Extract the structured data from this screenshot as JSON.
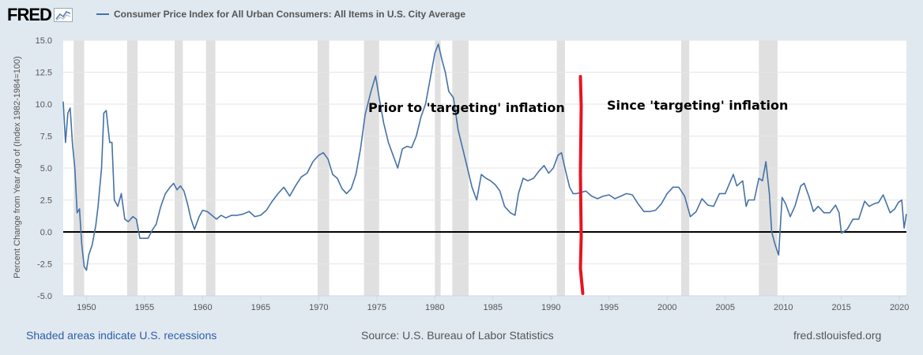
{
  "header": {
    "logo_text": "FRED",
    "logo_icon": "line-chart-icon",
    "series_name": "Consumer Price Index for All Urban Consumers: All Items in U.S. City Average",
    "series_color": "#4572a7"
  },
  "footer": {
    "recessions_note": "Shaded areas indicate U.S. recessions",
    "source": "Source: U.S. Bureau of Labor Statistics",
    "site": "fred.stlouisfed.org"
  },
  "chart_data": {
    "type": "line",
    "title": "",
    "xlabel": "",
    "ylabel": "Percent Change from Year Ago of (Index 1982-1984=100)",
    "xlim": [
      1948.0,
      2020.6
    ],
    "ylim": [
      -5.0,
      15.0
    ],
    "x_ticks": [
      "1950",
      "1955",
      "1960",
      "1965",
      "1970",
      "1975",
      "1980",
      "1985",
      "1990",
      "1995",
      "2000",
      "2005",
      "2010",
      "2015",
      "2020"
    ],
    "y_ticks": [
      "15.0",
      "12.5",
      "10.0",
      "7.5",
      "5.0",
      "2.5",
      "0.0",
      "-2.5",
      "-5.0"
    ],
    "grid": "horizontal",
    "zero_line": true,
    "recessions": [
      [
        1948.9,
        1949.8
      ],
      [
        1953.5,
        1954.4
      ],
      [
        1957.6,
        1958.3
      ],
      [
        1960.3,
        1961.1
      ],
      [
        1969.9,
        1970.9
      ],
      [
        1973.9,
        1975.2
      ],
      [
        1980.0,
        1980.5
      ],
      [
        1981.5,
        1982.9
      ],
      [
        1990.5,
        1991.2
      ],
      [
        2001.2,
        2001.9
      ],
      [
        2007.9,
        2009.5
      ]
    ],
    "series": [
      {
        "color": "#4572a7",
        "points": [
          [
            1948.0,
            10.2
          ],
          [
            1948.2,
            7.0
          ],
          [
            1948.4,
            9.3
          ],
          [
            1948.6,
            9.7
          ],
          [
            1948.8,
            6.8
          ],
          [
            1949.0,
            5.0
          ],
          [
            1949.2,
            1.5
          ],
          [
            1949.4,
            1.8
          ],
          [
            1949.6,
            -1.0
          ],
          [
            1949.8,
            -2.7
          ],
          [
            1950.0,
            -3.0
          ],
          [
            1950.2,
            -1.8
          ],
          [
            1950.5,
            -1.0
          ],
          [
            1950.8,
            0.5
          ],
          [
            1951.0,
            2.0
          ],
          [
            1951.3,
            5.0
          ],
          [
            1951.5,
            9.3
          ],
          [
            1951.7,
            9.5
          ],
          [
            1952.0,
            7.0
          ],
          [
            1952.2,
            7.0
          ],
          [
            1952.4,
            2.5
          ],
          [
            1952.7,
            2.0
          ],
          [
            1953.0,
            3.0
          ],
          [
            1953.3,
            1.0
          ],
          [
            1953.6,
            0.8
          ],
          [
            1954.0,
            1.2
          ],
          [
            1954.3,
            1.0
          ],
          [
            1954.6,
            -0.5
          ],
          [
            1955.0,
            -0.5
          ],
          [
            1955.3,
            -0.5
          ],
          [
            1955.7,
            0.2
          ],
          [
            1956.0,
            0.6
          ],
          [
            1956.4,
            2.0
          ],
          [
            1956.8,
            3.0
          ],
          [
            1957.2,
            3.5
          ],
          [
            1957.5,
            3.8
          ],
          [
            1957.8,
            3.3
          ],
          [
            1958.1,
            3.6
          ],
          [
            1958.4,
            3.2
          ],
          [
            1958.7,
            2.2
          ],
          [
            1959.0,
            1.0
          ],
          [
            1959.3,
            0.2
          ],
          [
            1959.7,
            1.2
          ],
          [
            1960.0,
            1.7
          ],
          [
            1960.4,
            1.6
          ],
          [
            1960.8,
            1.3
          ],
          [
            1961.2,
            1.0
          ],
          [
            1961.6,
            1.3
          ],
          [
            1962.0,
            1.1
          ],
          [
            1962.5,
            1.3
          ],
          [
            1963.0,
            1.3
          ],
          [
            1963.5,
            1.4
          ],
          [
            1964.0,
            1.6
          ],
          [
            1964.5,
            1.2
          ],
          [
            1965.0,
            1.3
          ],
          [
            1965.5,
            1.7
          ],
          [
            1966.0,
            2.4
          ],
          [
            1966.5,
            3.0
          ],
          [
            1967.0,
            3.5
          ],
          [
            1967.5,
            2.8
          ],
          [
            1968.0,
            3.6
          ],
          [
            1968.5,
            4.3
          ],
          [
            1969.0,
            4.6
          ],
          [
            1969.5,
            5.5
          ],
          [
            1970.0,
            6.0
          ],
          [
            1970.4,
            6.2
          ],
          [
            1970.8,
            5.7
          ],
          [
            1971.2,
            4.5
          ],
          [
            1971.6,
            4.2
          ],
          [
            1972.0,
            3.4
          ],
          [
            1972.4,
            3.0
          ],
          [
            1972.8,
            3.4
          ],
          [
            1973.2,
            4.5
          ],
          [
            1973.6,
            6.5
          ],
          [
            1974.0,
            9.2
          ],
          [
            1974.5,
            11.0
          ],
          [
            1974.9,
            12.2
          ],
          [
            1975.2,
            10.5
          ],
          [
            1975.6,
            8.5
          ],
          [
            1976.0,
            7.0
          ],
          [
            1976.4,
            6.0
          ],
          [
            1976.8,
            5.0
          ],
          [
            1977.2,
            6.5
          ],
          [
            1977.6,
            6.7
          ],
          [
            1978.0,
            6.6
          ],
          [
            1978.4,
            7.5
          ],
          [
            1978.8,
            9.0
          ],
          [
            1979.2,
            10.0
          ],
          [
            1979.6,
            12.0
          ],
          [
            1980.0,
            14.0
          ],
          [
            1980.3,
            14.7
          ],
          [
            1980.6,
            13.5
          ],
          [
            1980.9,
            12.5
          ],
          [
            1981.2,
            11.0
          ],
          [
            1981.6,
            10.5
          ],
          [
            1982.0,
            8.0
          ],
          [
            1982.4,
            6.5
          ],
          [
            1982.8,
            5.0
          ],
          [
            1983.2,
            3.5
          ],
          [
            1983.6,
            2.5
          ],
          [
            1984.0,
            4.5
          ],
          [
            1984.4,
            4.2
          ],
          [
            1984.8,
            4.0
          ],
          [
            1985.2,
            3.7
          ],
          [
            1985.6,
            3.2
          ],
          [
            1986.0,
            2.0
          ],
          [
            1986.5,
            1.5
          ],
          [
            1986.9,
            1.3
          ],
          [
            1987.2,
            3.0
          ],
          [
            1987.6,
            4.2
          ],
          [
            1988.0,
            4.0
          ],
          [
            1988.5,
            4.2
          ],
          [
            1989.0,
            4.8
          ],
          [
            1989.4,
            5.2
          ],
          [
            1989.8,
            4.6
          ],
          [
            1990.2,
            5.0
          ],
          [
            1990.6,
            6.0
          ],
          [
            1990.9,
            6.2
          ],
          [
            1991.2,
            5.0
          ],
          [
            1991.6,
            3.5
          ],
          [
            1991.9,
            3.0
          ],
          [
            1992.2,
            3.0
          ],
          [
            1992.6,
            3.1
          ],
          [
            1993.0,
            3.2
          ],
          [
            1993.5,
            2.8
          ],
          [
            1994.0,
            2.6
          ],
          [
            1994.5,
            2.8
          ],
          [
            1995.0,
            2.9
          ],
          [
            1995.5,
            2.6
          ],
          [
            1996.0,
            2.8
          ],
          [
            1996.5,
            3.0
          ],
          [
            1997.0,
            2.9
          ],
          [
            1997.5,
            2.2
          ],
          [
            1998.0,
            1.6
          ],
          [
            1998.5,
            1.6
          ],
          [
            1999.0,
            1.7
          ],
          [
            1999.5,
            2.2
          ],
          [
            2000.0,
            3.0
          ],
          [
            2000.5,
            3.5
          ],
          [
            2001.0,
            3.5
          ],
          [
            2001.5,
            2.8
          ],
          [
            2002.0,
            1.2
          ],
          [
            2002.5,
            1.6
          ],
          [
            2003.0,
            2.6
          ],
          [
            2003.5,
            2.1
          ],
          [
            2004.0,
            2.0
          ],
          [
            2004.5,
            3.0
          ],
          [
            2005.0,
            3.0
          ],
          [
            2005.7,
            4.5
          ],
          [
            2006.0,
            3.6
          ],
          [
            2006.5,
            4.0
          ],
          [
            2006.8,
            2.0
          ],
          [
            2007.0,
            2.5
          ],
          [
            2007.5,
            2.5
          ],
          [
            2007.9,
            4.2
          ],
          [
            2008.2,
            4.0
          ],
          [
            2008.5,
            5.5
          ],
          [
            2008.8,
            3.0
          ],
          [
            2009.0,
            0.0
          ],
          [
            2009.3,
            -1.0
          ],
          [
            2009.6,
            -1.8
          ],
          [
            2009.9,
            2.7
          ],
          [
            2010.2,
            2.2
          ],
          [
            2010.6,
            1.2
          ],
          [
            2011.0,
            2.0
          ],
          [
            2011.5,
            3.6
          ],
          [
            2011.8,
            3.8
          ],
          [
            2012.2,
            2.8
          ],
          [
            2012.6,
            1.6
          ],
          [
            2013.0,
            2.0
          ],
          [
            2013.5,
            1.5
          ],
          [
            2014.0,
            1.5
          ],
          [
            2014.5,
            2.1
          ],
          [
            2014.8,
            1.5
          ],
          [
            2015.0,
            -0.1
          ],
          [
            2015.5,
            0.2
          ],
          [
            2016.0,
            1.0
          ],
          [
            2016.5,
            1.0
          ],
          [
            2017.0,
            2.4
          ],
          [
            2017.4,
            2.0
          ],
          [
            2017.8,
            2.2
          ],
          [
            2018.2,
            2.3
          ],
          [
            2018.6,
            2.9
          ],
          [
            2018.9,
            2.2
          ],
          [
            2019.2,
            1.5
          ],
          [
            2019.6,
            1.8
          ],
          [
            2019.9,
            2.3
          ],
          [
            2020.2,
            2.5
          ],
          [
            2020.4,
            0.3
          ],
          [
            2020.6,
            1.4
          ]
        ]
      }
    ],
    "annotations": {
      "before": "Prior to 'targeting' inflation",
      "after": "Since 'targeting' inflation",
      "divider_year": 1992.6,
      "divider_color": "#e8141e"
    }
  }
}
